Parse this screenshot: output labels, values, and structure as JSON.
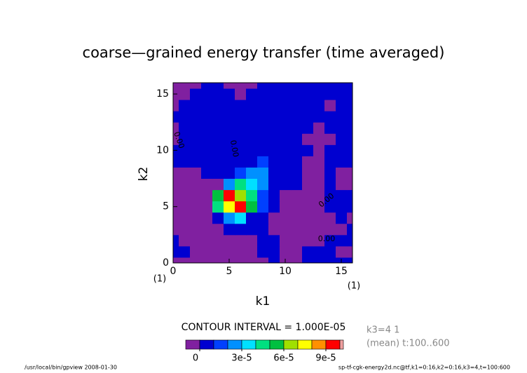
{
  "chart_data": {
    "type": "contour",
    "title": "coarse—grained energy transfer (time averaged)",
    "x_label": "k1",
    "y_label": "k2",
    "x_unit_note": "(1)",
    "y_unit_note": "(1)",
    "xlim": [
      0,
      16
    ],
    "ylim": [
      0,
      16
    ],
    "xticks": [
      0,
      5,
      10,
      15
    ],
    "yticks": [
      0,
      5,
      10,
      15
    ],
    "x": [
      0,
      1,
      2,
      3,
      4,
      5,
      6,
      7,
      8,
      9,
      10,
      11,
      12,
      13,
      14,
      15,
      16
    ],
    "y": [
      0,
      1,
      2,
      3,
      4,
      5,
      6,
      7,
      8,
      9,
      10,
      11,
      12,
      13,
      14,
      15,
      16
    ],
    "z": [
      [
        -5e-06,
        -5e-06,
        -5e-06,
        -5e-06,
        -5e-06,
        -5e-06,
        -5e-06,
        -5e-06,
        -5e-06,
        5e-06,
        -5e-06,
        -5e-06,
        5e-06,
        5e-06,
        5e-06,
        5e-06,
        5e-06
      ],
      [
        5e-06,
        5e-06,
        -5e-06,
        -5e-06,
        -5e-06,
        -5e-06,
        -5e-06,
        -5e-06,
        5e-06,
        5e-06,
        -5e-06,
        -5e-06,
        5e-06,
        5e-06,
        5e-06,
        -5e-06,
        -5e-06
      ],
      [
        5e-06,
        -5e-06,
        -5e-06,
        -5e-06,
        -5e-06,
        -5e-06,
        -5e-06,
        -5e-06,
        5e-06,
        5e-06,
        -5e-06,
        -5e-06,
        -5e-06,
        -5e-06,
        5e-06,
        5e-06,
        5e-06
      ],
      [
        -5e-06,
        -5e-06,
        -5e-06,
        -5e-06,
        -5e-06,
        5e-06,
        5e-06,
        5e-06,
        5e-06,
        -5e-06,
        -5e-06,
        -5e-06,
        -5e-06,
        -5e-06,
        -5e-06,
        -5e-06,
        5e-06
      ],
      [
        -5e-06,
        -5e-06,
        -5e-06,
        -5e-06,
        5e-06,
        2.5e-05,
        3.5e-05,
        5e-06,
        5e-06,
        -5e-06,
        -5e-06,
        -5e-06,
        -5e-06,
        -5e-06,
        -5e-06,
        5e-06,
        -5e-06
      ],
      [
        -5e-06,
        -5e-06,
        -5e-06,
        -5e-06,
        4.5e-05,
        7.5e-05,
        9.5e-05,
        5.5e-05,
        1.5e-05,
        5e-06,
        -5e-06,
        -5e-06,
        -5e-06,
        -5e-06,
        5e-06,
        5e-06,
        5e-06
      ],
      [
        -5e-06,
        -5e-06,
        -5e-06,
        -5e-06,
        5.5e-05,
        9.5e-05,
        6.5e-05,
        4.5e-05,
        1.5e-05,
        5e-06,
        -5e-06,
        -5e-06,
        -5e-06,
        -5e-06,
        5e-06,
        5e-06,
        5e-06
      ],
      [
        -5e-06,
        -5e-06,
        -5e-06,
        -5e-06,
        -5e-06,
        2.5e-05,
        4.5e-05,
        3.5e-05,
        2.5e-05,
        5e-06,
        5e-06,
        5e-06,
        -5e-06,
        -5e-06,
        5e-06,
        -5e-06,
        -5e-06
      ],
      [
        -5e-06,
        -5e-06,
        -5e-06,
        5e-06,
        5e-06,
        5e-06,
        1.5e-05,
        2.5e-05,
        2.5e-05,
        5e-06,
        5e-06,
        5e-06,
        -5e-06,
        -5e-06,
        5e-06,
        -5e-06,
        -5e-06
      ],
      [
        5e-06,
        5e-06,
        5e-06,
        5e-06,
        5e-06,
        5e-06,
        5e-06,
        5e-06,
        1.5e-05,
        5e-06,
        5e-06,
        5e-06,
        -5e-06,
        -5e-06,
        5e-06,
        5e-06,
        5e-06
      ],
      [
        5e-06,
        5e-06,
        5e-06,
        5e-06,
        5e-06,
        5e-06,
        5e-06,
        5e-06,
        5e-06,
        5e-06,
        5e-06,
        5e-06,
        5e-06,
        -5e-06,
        5e-06,
        5e-06,
        5e-06
      ],
      [
        -5e-06,
        5e-06,
        5e-06,
        5e-06,
        5e-06,
        5e-06,
        5e-06,
        5e-06,
        5e-06,
        5e-06,
        5e-06,
        5e-06,
        -5e-06,
        -5e-06,
        -5e-06,
        5e-06,
        5e-06
      ],
      [
        -5e-06,
        5e-06,
        5e-06,
        5e-06,
        5e-06,
        5e-06,
        5e-06,
        5e-06,
        5e-06,
        5e-06,
        5e-06,
        5e-06,
        5e-06,
        -5e-06,
        5e-06,
        5e-06,
        5e-06
      ],
      [
        5e-06,
        5e-06,
        5e-06,
        5e-06,
        5e-06,
        5e-06,
        5e-06,
        5e-06,
        5e-06,
        5e-06,
        5e-06,
        5e-06,
        5e-06,
        5e-06,
        5e-06,
        5e-06,
        5e-06
      ],
      [
        -5e-06,
        5e-06,
        5e-06,
        5e-06,
        5e-06,
        5e-06,
        5e-06,
        5e-06,
        5e-06,
        5e-06,
        5e-06,
        5e-06,
        5e-06,
        5e-06,
        -5e-06,
        5e-06,
        5e-06
      ],
      [
        -5e-06,
        -5e-06,
        5e-06,
        5e-06,
        5e-06,
        5e-06,
        -5e-06,
        5e-06,
        5e-06,
        5e-06,
        5e-06,
        5e-06,
        5e-06,
        5e-06,
        5e-06,
        5e-06,
        5e-06
      ],
      [
        -5e-06,
        -5e-06,
        -5e-06,
        5e-06,
        5e-06,
        -5e-06,
        -5e-06,
        -5e-06,
        5e-06,
        5e-06,
        5e-06,
        5e-06,
        5e-06,
        5e-06,
        5e-06,
        5e-06,
        5e-06
      ]
    ],
    "levels": [
      0,
      1e-05,
      2e-05,
      3e-05,
      4e-05,
      5e-05,
      6e-05,
      7e-05,
      8e-05,
      9e-05,
      0.0001
    ],
    "colors": [
      "#8020a0",
      "#0000d0",
      "#0040ff",
      "#0090ff",
      "#00e0ff",
      "#00e080",
      "#00c040",
      "#a0e000",
      "#ffff00",
      "#ff9000",
      "#ff0000",
      "#f0a0a0"
    ],
    "colorbar_ticks": [
      0,
      {
        "value": 3e-05,
        "label": "3e-5"
      },
      {
        "value": 6e-05,
        "label": "6e-5"
      },
      {
        "value": 9e-05,
        "label": "9e-5"
      }
    ],
    "contour_interval": "CONTOUR INTERVAL = 1.000E-05",
    "contour_labels": [
      "0.00",
      "0.00",
      "0.00",
      "0.00"
    ],
    "info_lines": [
      "k3=4 1",
      "(mean) t:100..600"
    ],
    "footer_left": "/usr/local/bin/gpview  2008-01-30",
    "footer_right": "sp-tf-cgk-energy2d.nc@tf,k1=0:16,k2=0:16,k3=4,t=100:600"
  }
}
